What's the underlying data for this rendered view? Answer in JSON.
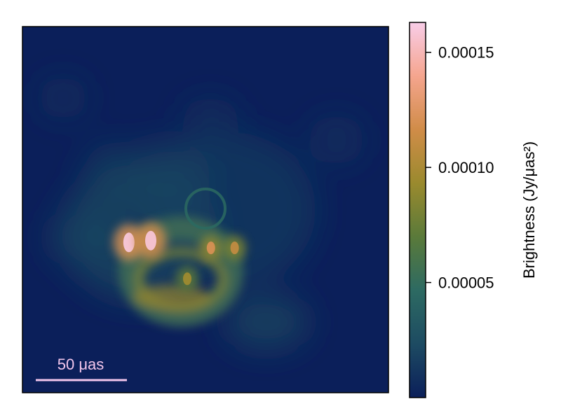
{
  "chart_data": {
    "type": "heatmap",
    "title": "",
    "xlabel": "",
    "ylabel": "",
    "colorbar": {
      "label": "Brightness (Jy/μas²)",
      "range": [
        0.0,
        0.000163
      ],
      "ticks": [
        {
          "value": 5e-05,
          "label": "0.00005"
        },
        {
          "value": 0.0001,
          "label": "0.00010"
        },
        {
          "value": 0.00015,
          "label": "0.00015"
        }
      ],
      "colormap": [
        "#0b1f5a",
        "#1d4b62",
        "#2d6a62",
        "#5a7a3a",
        "#9a8a2e",
        "#d08c48",
        "#f5a58e",
        "#f8cde8"
      ]
    },
    "scalebar": {
      "label": "50 μas",
      "length_uas": 50,
      "color": "#f2c6ec"
    },
    "grid": false,
    "axes_tick_labels": false,
    "features": [
      {
        "name": "bright-knot-left",
        "x_uas": -42,
        "y_uas": -18,
        "value": 0.00016
      },
      {
        "name": "bright-knot-left-2",
        "x_uas": -30,
        "y_uas": -17,
        "value": 0.000158
      },
      {
        "name": "knot-right",
        "x_uas": 3,
        "y_uas": -21,
        "value": 0.00012
      },
      {
        "name": "knot-right-2",
        "x_uas": 16,
        "y_uas": -21,
        "value": 0.00011
      },
      {
        "name": "ring-bottom",
        "x_uas": -10,
        "y_uas": -38,
        "value": 9.5e-05
      },
      {
        "name": "faint-ring",
        "x_uas": 3,
        "y_uas": 20,
        "value": 3e-05
      }
    ]
  }
}
